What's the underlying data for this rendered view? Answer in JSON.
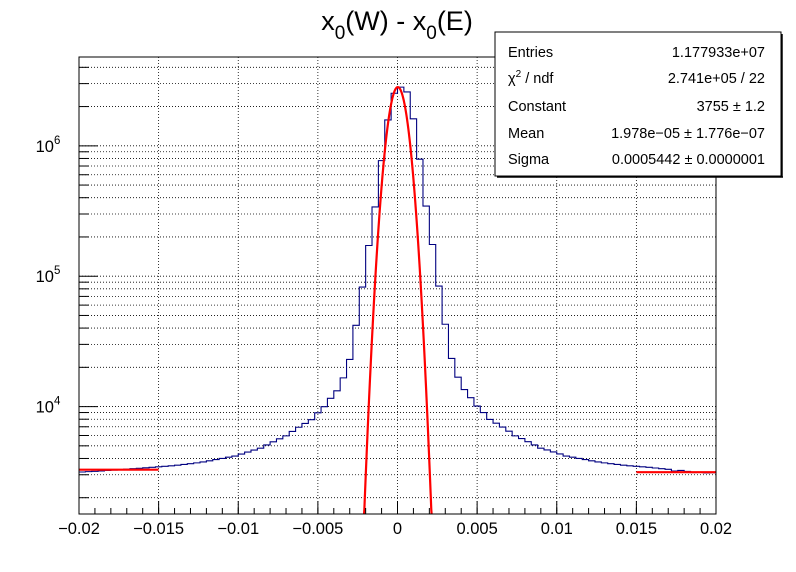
{
  "chart_data": {
    "type": "histogram",
    "title": {
      "base1": "x",
      "sub1": "0",
      "mid": "(W) - x",
      "sub2": "0",
      "end": "(E)"
    },
    "xlim": [
      -0.02,
      0.02
    ],
    "ylim": [
      1500,
      4800000
    ],
    "y_scale": "log",
    "grid": true,
    "x_ticks": [
      {
        "value": -0.02,
        "label": "−0.02"
      },
      {
        "value": -0.015,
        "label": "−0.015"
      },
      {
        "value": -0.01,
        "label": "−0.01"
      },
      {
        "value": -0.005,
        "label": "−0.005"
      },
      {
        "value": 0,
        "label": "0"
      },
      {
        "value": 0.005,
        "label": "0.005"
      },
      {
        "value": 0.01,
        "label": "0.01"
      },
      {
        "value": 0.015,
        "label": "0.015"
      },
      {
        "value": 0.02,
        "label": "0.02"
      }
    ],
    "y_ticks": [
      {
        "value": 10000,
        "base": "10",
        "exp": "4"
      },
      {
        "value": 100000,
        "base": "10",
        "exp": "5"
      },
      {
        "value": 1000000,
        "base": "10",
        "exp": "6"
      }
    ],
    "bin_count": 100,
    "x_range": [
      -0.02,
      0.02
    ],
    "series": [
      {
        "kind": "histogram",
        "color": "#000080",
        "values": [
          3150,
          3170,
          3190,
          3210,
          3240,
          3260,
          3290,
          3310,
          3340,
          3360,
          3390,
          3420,
          3450,
          3480,
          3510,
          3550,
          3600,
          3650,
          3700,
          3760,
          3840,
          3920,
          4000,
          4090,
          4170,
          4320,
          4480,
          4640,
          4800,
          5080,
          5370,
          5660,
          5960,
          6450,
          6940,
          7430,
          7930,
          8950,
          9980,
          11570,
          13220,
          16600,
          23000,
          42000,
          82600,
          172000,
          340000,
          770000,
          1580000,
          2530000,
          2820000,
          2590000,
          1610000,
          790000,
          345000,
          175000,
          84000,
          42800,
          23400,
          16800,
          13500,
          11700,
          10100,
          9000,
          7970,
          7460,
          6960,
          6470,
          5960,
          5680,
          5380,
          5080,
          4800,
          4650,
          4490,
          4330,
          4170,
          4090,
          4000,
          3920,
          3840,
          3760,
          3700,
          3650,
          3600,
          3550,
          3510,
          3480,
          3450,
          3420,
          3380,
          3340,
          3300,
          3200,
          3240,
          3180,
          3120,
          3150,
          3100,
          3110
        ]
      },
      {
        "kind": "gaus-fit",
        "color": "#ff0000",
        "constant": 2820000,
        "mean": 2e-05,
        "sigma": 0.000544
      },
      {
        "kind": "flat-fit",
        "color": "#ff0000",
        "segments": [
          {
            "x0": -0.02,
            "x1": -0.015,
            "y": 3280
          },
          {
            "x0": 0.015,
            "x1": 0.02,
            "y": 3140
          }
        ]
      }
    ],
    "stats_box": {
      "rows": [
        {
          "label": "Entries",
          "label_sup": "",
          "label_rest": "",
          "value": "1.177933e+07"
        },
        {
          "label": "χ",
          "label_sup": "2",
          "label_rest": " / ndf",
          "value": "2.741e+05 / 22"
        },
        {
          "label": "Constant",
          "label_sup": "",
          "label_rest": "",
          "value": "3755 ± 1.2"
        },
        {
          "label": "Mean",
          "label_sup": "",
          "label_rest": "",
          "value": "1.978e−05 ± 1.776e−07"
        },
        {
          "label": "Sigma",
          "label_sup": "",
          "label_rest": "",
          "value": "0.0005442 ± 0.0000001"
        }
      ]
    }
  }
}
